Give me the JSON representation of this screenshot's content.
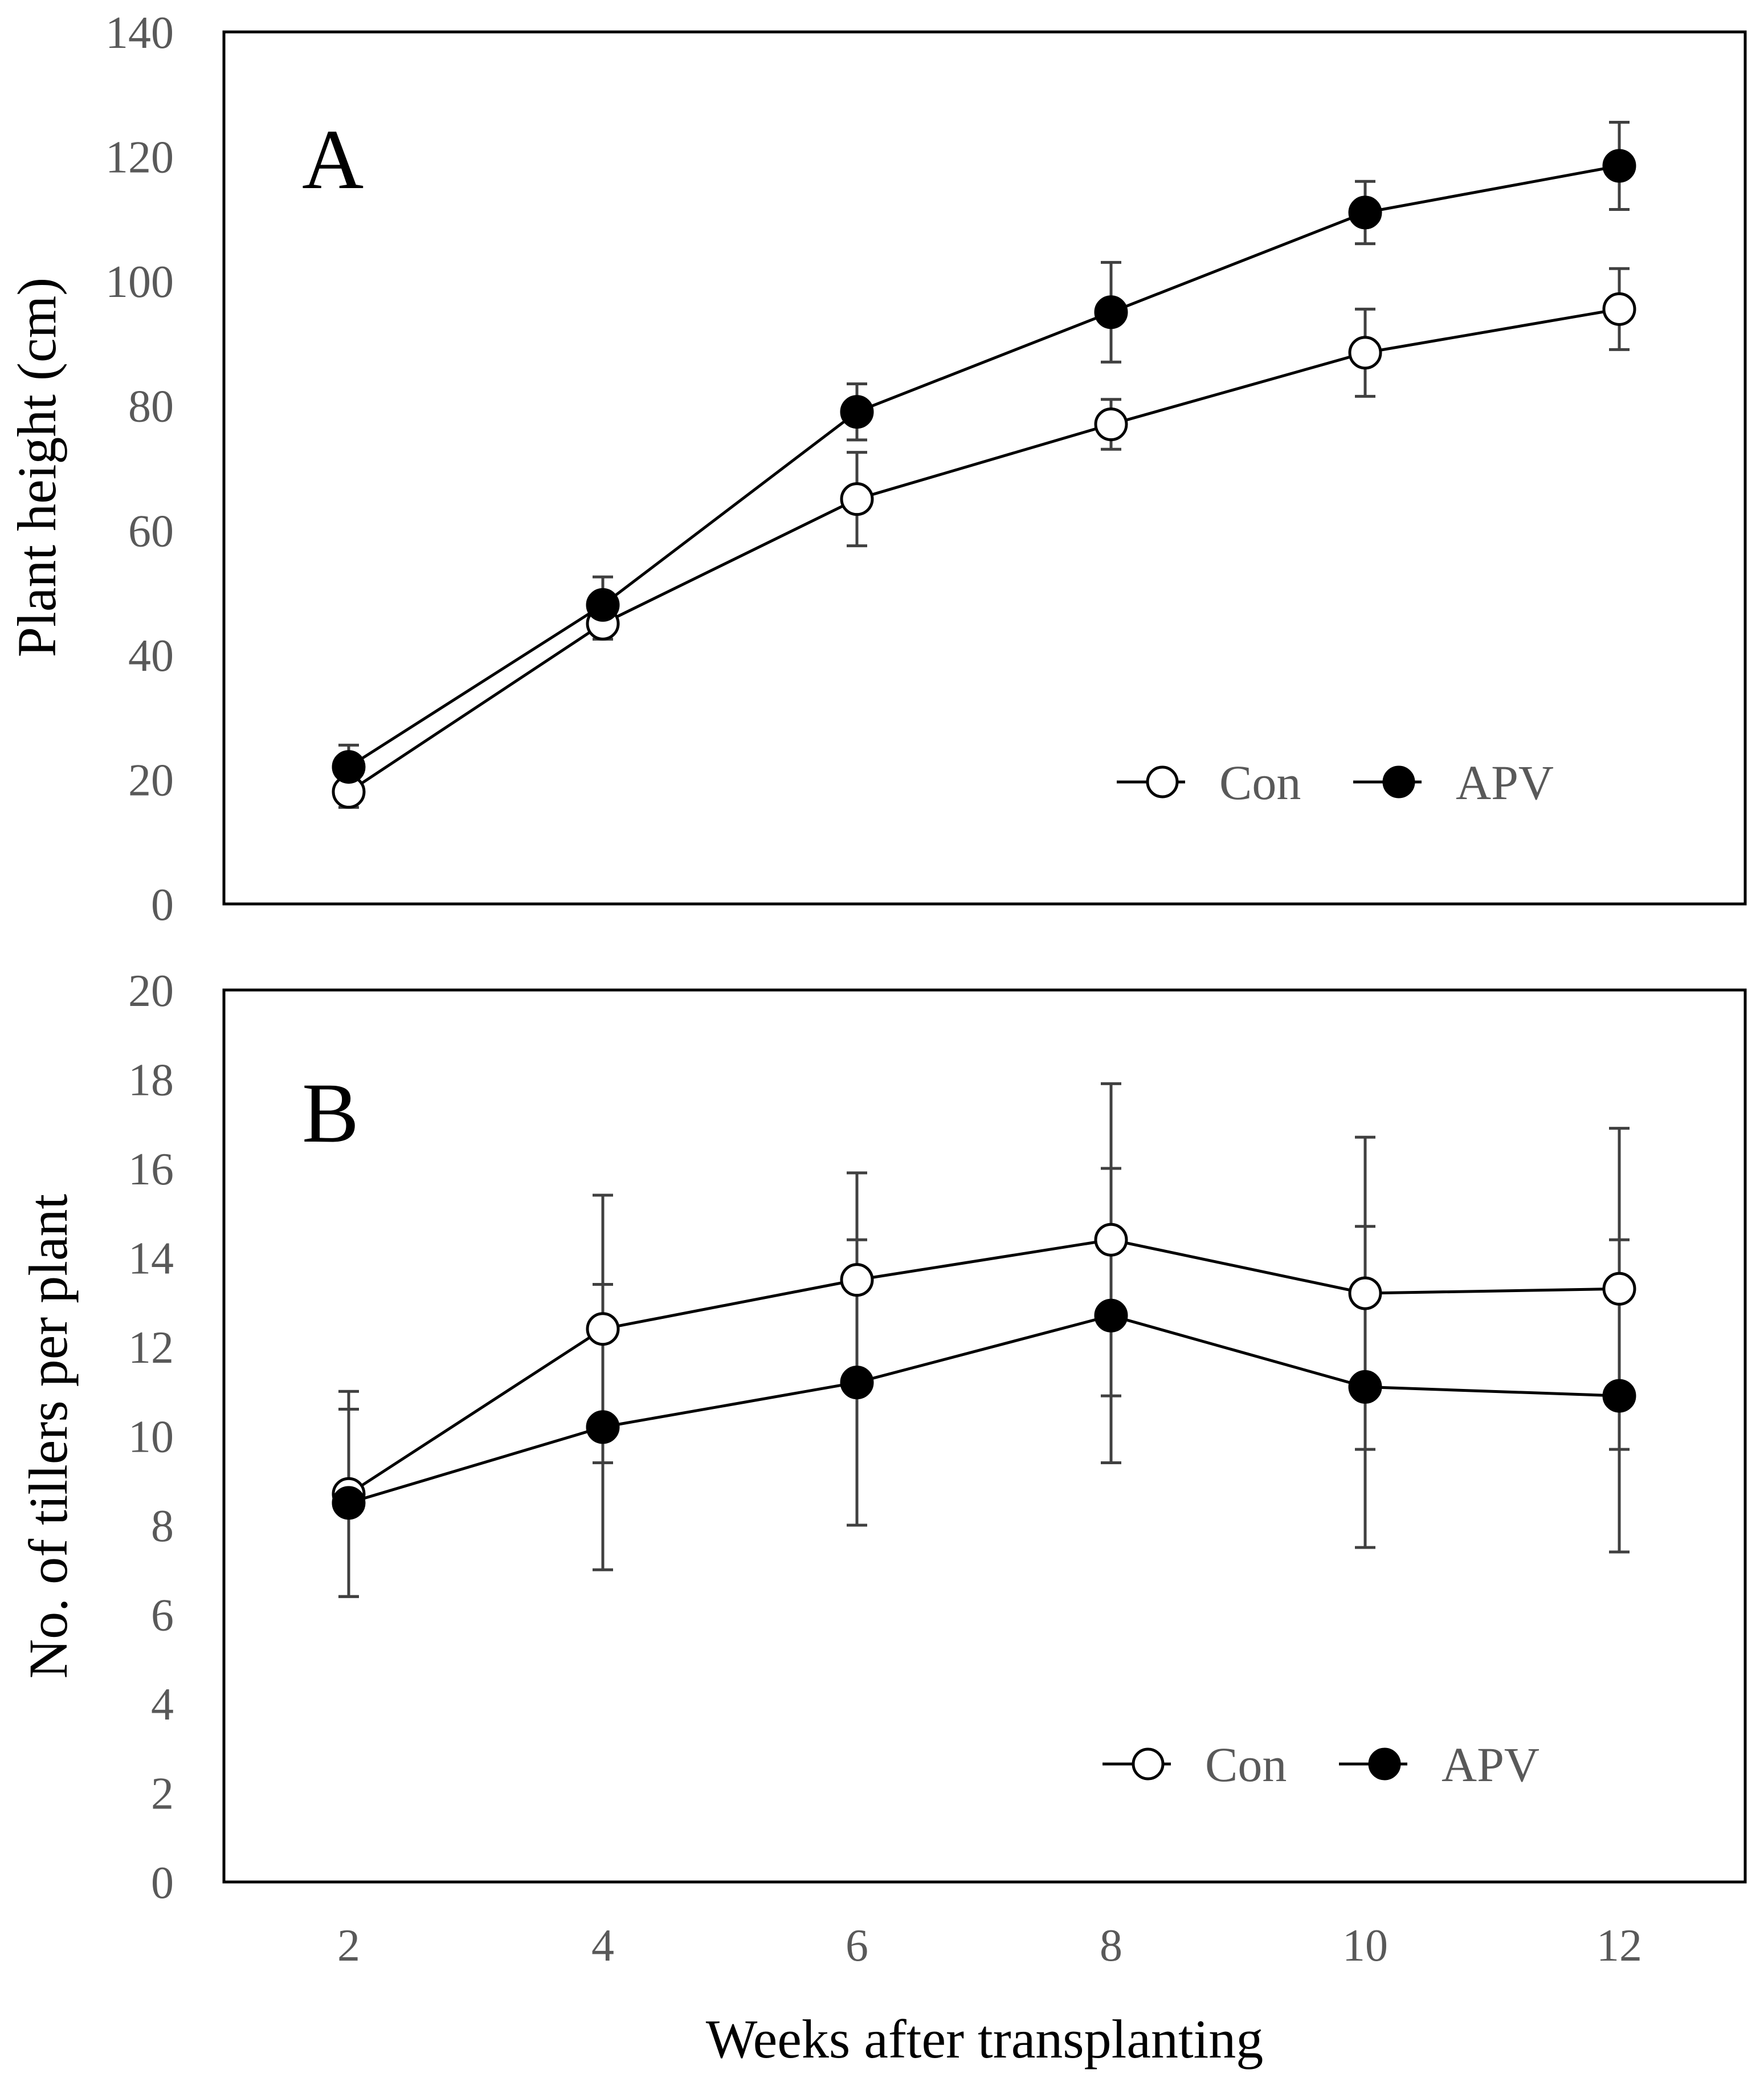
{
  "chart_data": [
    {
      "type": "line",
      "panel_label": "A",
      "x": [
        2,
        4,
        6,
        8,
        10,
        12
      ],
      "ylabel": "Plant height (cm)",
      "ylim": [
        0,
        140
      ],
      "yticks": [
        0,
        20,
        40,
        60,
        80,
        100,
        120,
        140
      ],
      "grid": false,
      "legend": "bottom-right",
      "series": [
        {
          "name": "Con",
          "marker": "open-circle",
          "values": [
            18,
            45,
            65,
            77,
            88.5,
            95.5
          ],
          "errors": [
            2.5,
            2.5,
            7.5,
            4,
            7,
            6.5
          ]
        },
        {
          "name": "APV",
          "marker": "filled-circle",
          "values": [
            22,
            48,
            79,
            95,
            111,
            118.5
          ],
          "errors": [
            3.5,
            4.5,
            4.5,
            8,
            5,
            7
          ]
        }
      ]
    },
    {
      "type": "line",
      "panel_label": "B",
      "x": [
        2,
        4,
        6,
        8,
        10,
        12
      ],
      "xlabel": "Weeks after transplanting",
      "xticks": [
        2,
        4,
        6,
        8,
        10,
        12
      ],
      "ylabel": "No. of tillers per plant",
      "ylim": [
        0,
        20
      ],
      "yticks": [
        0,
        2,
        4,
        6,
        8,
        10,
        12,
        14,
        16,
        18,
        20
      ],
      "grid": false,
      "legend": "bottom-right",
      "series": [
        {
          "name": "Con",
          "marker": "open-circle",
          "values": [
            8.7,
            12.4,
            13.5,
            14.4,
            13.2,
            13.3
          ],
          "errors": [
            2.3,
            3.0,
            2.4,
            3.5,
            3.5,
            3.6
          ]
        },
        {
          "name": "APV",
          "marker": "filled-circle",
          "values": [
            8.5,
            10.2,
            11.2,
            12.7,
            11.1,
            10.9
          ],
          "errors": [
            2.1,
            3.2,
            3.2,
            3.3,
            3.6,
            3.5
          ]
        }
      ]
    }
  ]
}
